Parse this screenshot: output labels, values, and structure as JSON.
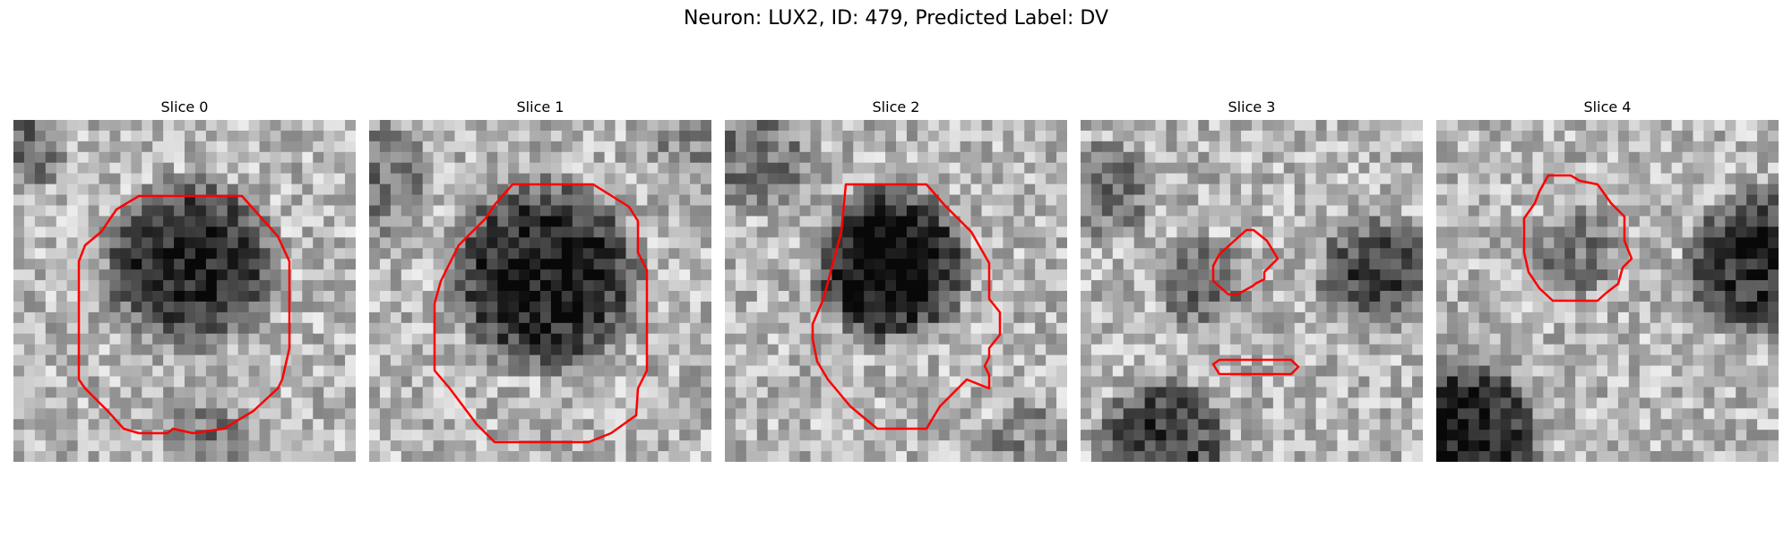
{
  "figure": {
    "title": "Neuron: LUX2, ID: 479, Predicted Label: DV",
    "outline_color": "#ff0000",
    "colormap": "gray"
  },
  "slices": [
    {
      "label": "Slice 0"
    },
    {
      "label": "Slice 1"
    },
    {
      "label": "Slice 2"
    },
    {
      "label": "Slice 3"
    },
    {
      "label": "Slice 4"
    }
  ]
}
